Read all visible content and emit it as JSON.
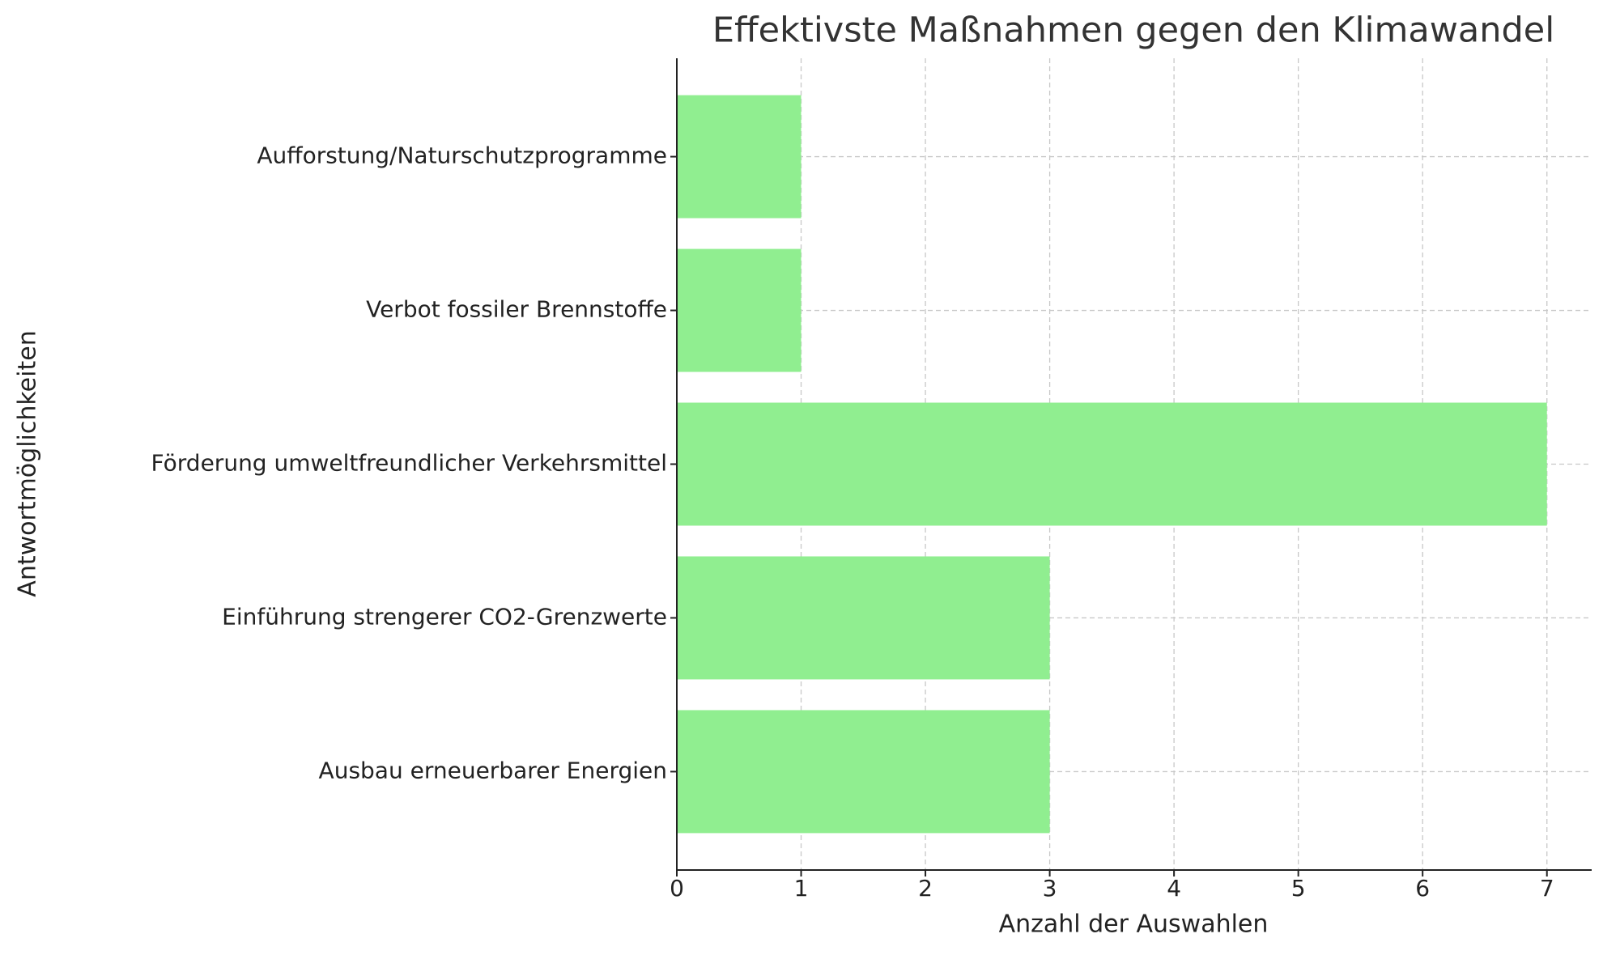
{
  "chart_data": {
    "type": "barh",
    "title": "Effektivste Maßnahmen gegen den Klimawandel",
    "x_label": "Anzahl der Auswahlen",
    "y_label": "Antwortmöglichkeiten",
    "categories": [
      "Ausbau erneuerbarer Energien",
      "Einführung strengerer CO2-Grenzwerte",
      "Förderung umweltfreundlicher Verkehrsmittel",
      "Verbot fossiler Brennstoffe",
      "Aufforstung/Naturschutzprogramme"
    ],
    "values": [
      3,
      3,
      7,
      1,
      1
    ],
    "color": "#90ee90",
    "xlim": [
      0,
      7.36
    ],
    "xticks": [
      0,
      1,
      2,
      3,
      4,
      5,
      6,
      7
    ],
    "grid": true
  }
}
